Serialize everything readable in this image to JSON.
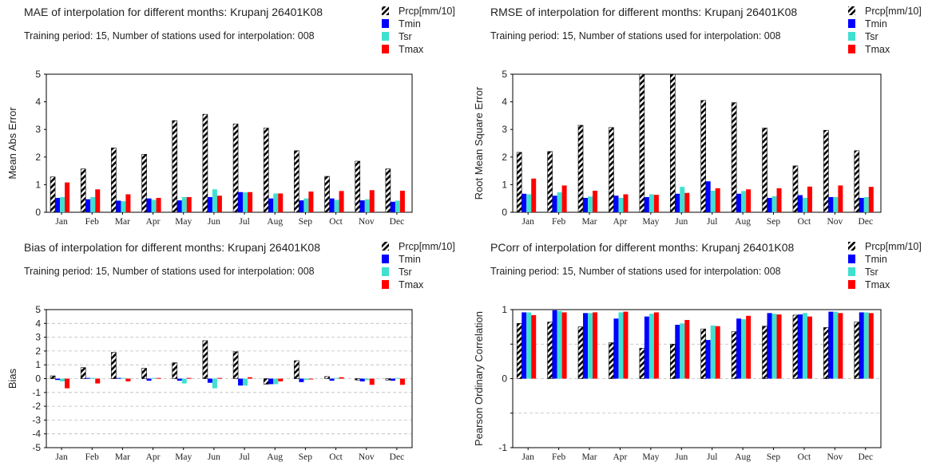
{
  "colors": {
    "Prcp": "#000000",
    "Tmin": "#0000ff",
    "Tsr": "#40e0d0",
    "Tmax": "#ff0000"
  },
  "chart_data": [
    {
      "type": "bar",
      "title": "MAE of interpolation for different months: Krupanj  26401K08",
      "subtitle": "Training period: 15, Number of stations used for interpolation: 008",
      "xlabel": "",
      "ylabel": "Mean Abs Error",
      "ylim": [
        0,
        5
      ],
      "yticks": [
        "0",
        "1",
        "2",
        "3",
        "4",
        "5"
      ],
      "grid": false,
      "legend_position": "top-right",
      "categories": [
        "Jan",
        "Feb",
        "Mar",
        "Apr",
        "May",
        "Jun",
        "Jul",
        "Aug",
        "Sep",
        "Oct",
        "Nov",
        "Dec"
      ],
      "series": [
        {
          "name": "Prcp[mm/10]",
          "values": [
            1.28,
            1.57,
            2.33,
            2.1,
            3.32,
            3.55,
            3.2,
            3.05,
            2.23,
            1.3,
            1.85,
            1.57
          ]
        },
        {
          "name": "Tmin",
          "values": [
            0.52,
            0.47,
            0.42,
            0.5,
            0.43,
            0.55,
            0.73,
            0.5,
            0.43,
            0.5,
            0.43,
            0.38
          ]
        },
        {
          "name": "Tsr",
          "values": [
            0.55,
            0.55,
            0.4,
            0.45,
            0.55,
            0.83,
            0.72,
            0.68,
            0.5,
            0.45,
            0.47,
            0.42
          ]
        },
        {
          "name": "Tmax",
          "values": [
            1.08,
            0.83,
            0.65,
            0.52,
            0.55,
            0.6,
            0.73,
            0.68,
            0.75,
            0.77,
            0.8,
            0.78
          ]
        }
      ]
    },
    {
      "type": "bar",
      "title": "RMSE of interpolation for different months: Krupanj  26401K08",
      "subtitle": "Training period: 15, Number of stations used for interpolation: 008",
      "xlabel": "",
      "ylabel": "Root Mean Square Error",
      "ylim": [
        0,
        5
      ],
      "yticks": [
        "0",
        "1",
        "2",
        "3",
        "4",
        "5"
      ],
      "grid": false,
      "legend_position": "top-right",
      "categories": [
        "Jan",
        "Feb",
        "Mar",
        "Apr",
        "May",
        "Jun",
        "Jul",
        "Aug",
        "Sep",
        "Oct",
        "Nov",
        "Dec"
      ],
      "series": [
        {
          "name": "Prcp[mm/10]",
          "values": [
            2.17,
            2.2,
            3.15,
            3.07,
            5.0,
            5.0,
            4.05,
            3.97,
            3.05,
            1.68,
            2.97,
            2.23
          ]
        },
        {
          "name": "Tmin",
          "values": [
            0.67,
            0.6,
            0.52,
            0.6,
            0.55,
            0.67,
            1.12,
            0.67,
            0.52,
            0.62,
            0.55,
            0.52
          ]
        },
        {
          "name": "Tsr",
          "values": [
            0.65,
            0.72,
            0.57,
            0.52,
            0.65,
            0.92,
            0.78,
            0.77,
            0.58,
            0.52,
            0.55,
            0.55
          ]
        },
        {
          "name": "Tmax",
          "values": [
            1.22,
            0.97,
            0.78,
            0.65,
            0.63,
            0.7,
            0.87,
            0.83,
            0.87,
            0.93,
            0.97,
            0.92
          ]
        }
      ]
    },
    {
      "type": "bar",
      "title": "Bias of interpolation for different months: Krupanj  26401K08",
      "subtitle": "Training period: 15, Number of stations used for interpolation: 008",
      "xlabel": "",
      "ylabel": "Bias",
      "ylim": [
        -5,
        5
      ],
      "yticks": [
        "-5",
        "-4",
        "-3",
        "-2",
        "-1",
        "0",
        "1",
        "2",
        "3",
        "4",
        "5"
      ],
      "grid": true,
      "legend_position": "top-right",
      "categories": [
        "Jan",
        "Feb",
        "Mar",
        "Apr",
        "May",
        "Jun",
        "Jul",
        "Aug",
        "Sep",
        "Oct",
        "Nov",
        "Dec"
      ],
      "series": [
        {
          "name": "Prcp[mm/10]",
          "values": [
            0.2,
            0.8,
            1.9,
            0.75,
            1.15,
            2.75,
            1.95,
            -0.4,
            1.3,
            0.15,
            -0.1,
            -0.1
          ]
        },
        {
          "name": "Tmin",
          "values": [
            -0.1,
            0.05,
            0.05,
            -0.15,
            -0.15,
            -0.3,
            -0.5,
            -0.4,
            -0.25,
            -0.15,
            -0.2,
            -0.15
          ]
        },
        {
          "name": "Tsr",
          "values": [
            -0.2,
            0.05,
            0.05,
            0.05,
            -0.35,
            -0.7,
            -0.5,
            -0.4,
            -0.1,
            0.05,
            -0.1,
            0.05
          ]
        },
        {
          "name": "Tmax",
          "values": [
            -0.7,
            -0.35,
            -0.2,
            0.05,
            0.05,
            0.05,
            0.1,
            -0.2,
            -0.05,
            0.1,
            -0.45,
            -0.45
          ]
        }
      ]
    },
    {
      "type": "bar",
      "title": "PCorr of interpolation for different months: Krupanj  26401K08",
      "subtitle": "Training period: 15, Number of stations used for interpolation: 008",
      "xlabel": "",
      "ylabel": "Pearson Ordinary Correlation",
      "ylim": [
        -1,
        1
      ],
      "yticks": [
        "-1",
        "",
        "0",
        "",
        "1"
      ],
      "grid": true,
      "legend_position": "top-right",
      "categories": [
        "Jan",
        "Feb",
        "Mar",
        "Apr",
        "May",
        "Jun",
        "Jul",
        "Aug",
        "Sep",
        "Oct",
        "Nov",
        "Dec"
      ],
      "series": [
        {
          "name": "Prcp[mm/10]",
          "values": [
            0.8,
            0.82,
            0.75,
            0.52,
            0.44,
            0.5,
            0.72,
            0.68,
            0.76,
            0.92,
            0.74,
            0.82
          ]
        },
        {
          "name": "Tmin",
          "values": [
            0.96,
            0.99,
            0.95,
            0.87,
            0.9,
            0.78,
            0.56,
            0.87,
            0.95,
            0.93,
            0.97,
            0.96
          ]
        },
        {
          "name": "Tsr",
          "values": [
            0.96,
            0.98,
            0.95,
            0.96,
            0.94,
            0.8,
            0.77,
            0.86,
            0.94,
            0.95,
            0.97,
            0.96
          ]
        },
        {
          "name": "Tmax",
          "values": [
            0.92,
            0.96,
            0.96,
            0.97,
            0.96,
            0.85,
            0.76,
            0.91,
            0.93,
            0.9,
            0.95,
            0.95
          ]
        }
      ]
    }
  ]
}
